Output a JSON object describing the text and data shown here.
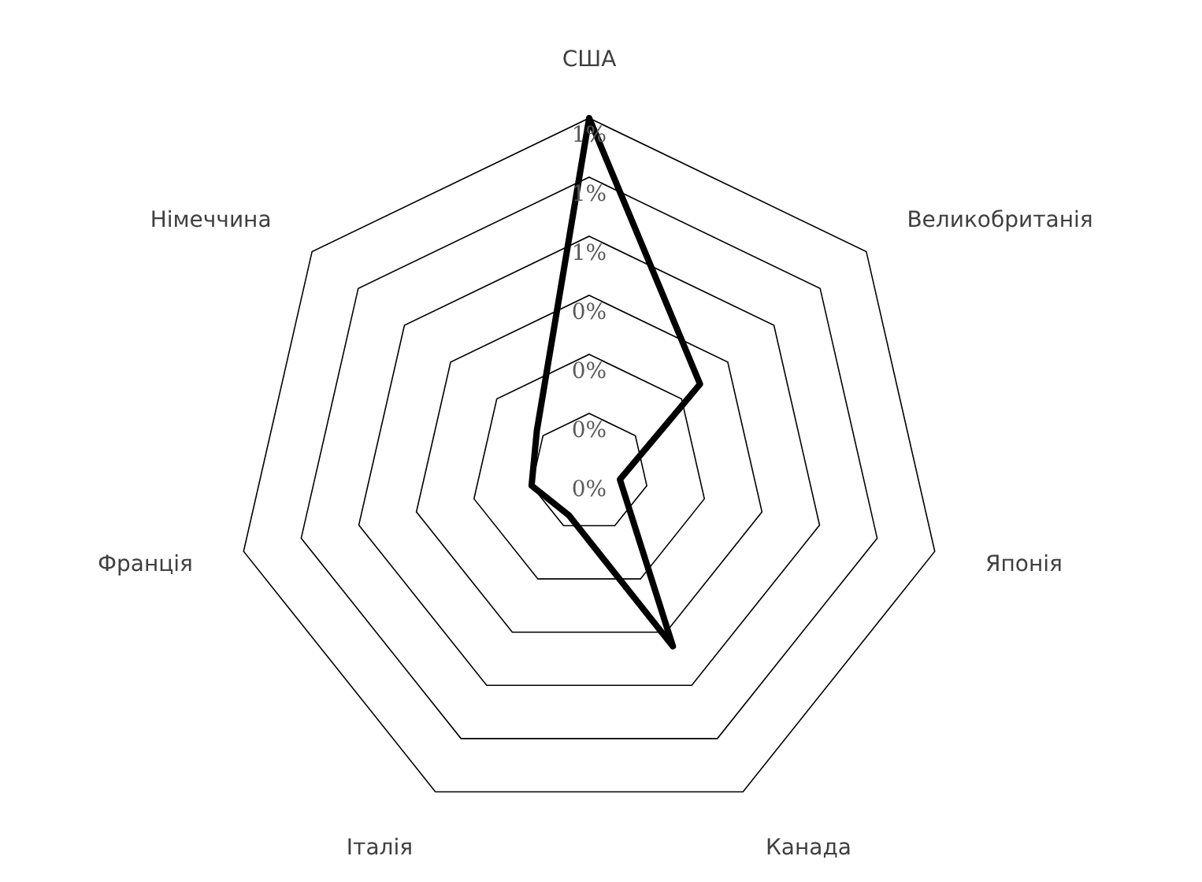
{
  "chart_data": {
    "type": "radar",
    "categories": [
      "США",
      "Великобританія",
      "Японія",
      "Канада",
      "Італія",
      "Франція",
      "Німеччина"
    ],
    "series": [
      {
        "color": "#000000",
        "values": [
          0.9,
          0.36,
          0.08,
          0.49,
          0.12,
          0.15,
          0.17
        ]
      }
    ],
    "ylim": [
      0,
      0.9
    ],
    "yticks": [
      {
        "value": 0,
        "label": "0%"
      },
      {
        "value": 0.15,
        "label": "0%"
      },
      {
        "value": 0.3,
        "label": "0%"
      },
      {
        "value": 0.45,
        "label": "0%"
      },
      {
        "value": 0.6,
        "label": "1%"
      },
      {
        "value": 0.75,
        "label": "1%"
      },
      {
        "value": 0.9,
        "label": "1%"
      }
    ],
    "grid": true,
    "marker": "none",
    "line_style": "solid",
    "legend": false
  }
}
